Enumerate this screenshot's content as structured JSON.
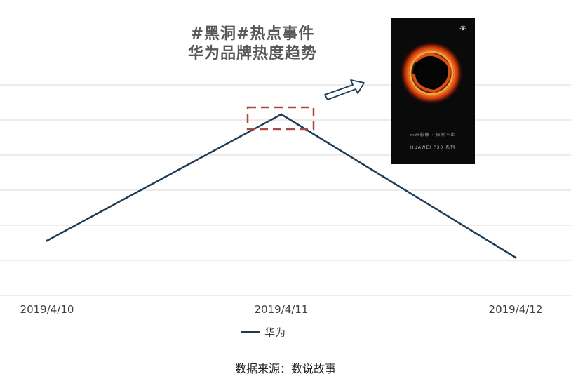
{
  "chart_data": {
    "type": "line",
    "title_line1": "#黑洞#热点事件",
    "title_line2": "华为品牌热度趋势",
    "categories": [
      "2019/4/10",
      "2019/4/11",
      "2019/4/12"
    ],
    "series": [
      {
        "name": "华为",
        "values": [
          26,
          86,
          18
        ]
      }
    ],
    "ylim": [
      0,
      100
    ],
    "grid": true,
    "legend_position": "bottom",
    "highlight": {
      "category": "2019/4/11",
      "style": "dashed-box"
    },
    "annotation": "arrow pointing to inset image",
    "source": "数据来源：数说故事",
    "inset_image": {
      "tagline": "未来影像 · 探索不止",
      "brand": "HUAWEI P30 系列"
    },
    "colors": {
      "line": "#1f3c57",
      "grid": "#d9d9d9",
      "highlight": "#a94a47",
      "ring": "#ff5a1a"
    }
  }
}
